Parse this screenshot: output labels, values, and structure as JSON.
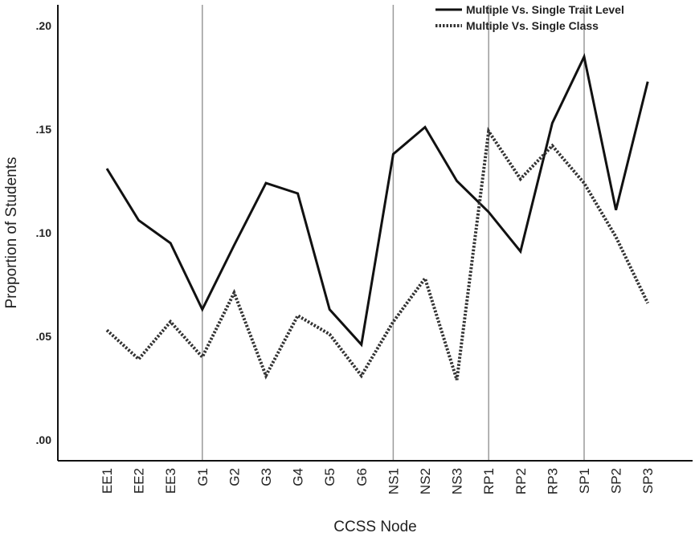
{
  "chart_data": {
    "type": "line",
    "xlabel": "CCSS Node",
    "ylabel": "Proportion of Students",
    "categories": [
      "EE1",
      "EE2",
      "EE3",
      "G1",
      "G2",
      "G3",
      "G4",
      "G5",
      "G6",
      "NS1",
      "NS2",
      "NS3",
      "RP1",
      "RP2",
      "RP3",
      "SP1",
      "SP2",
      "SP3"
    ],
    "ylim": [
      0.0,
      0.21
    ],
    "yticks": [
      0.0,
      0.05,
      0.1,
      0.15,
      0.2
    ],
    "ytick_labels": [
      ".00",
      ".05",
      ".10",
      ".15",
      ".20"
    ],
    "reference_lines_after": [
      "G1",
      "NS1",
      "RP1",
      "SP1"
    ],
    "legend_position": "top-right",
    "series": [
      {
        "name": "Multiple Vs. Single Trait Level",
        "style": "solid",
        "color": "#111111",
        "values": [
          0.131,
          0.106,
          0.095,
          0.063,
          0.094,
          0.124,
          0.119,
          0.063,
          0.046,
          0.138,
          0.151,
          0.125,
          0.11,
          0.091,
          0.153,
          0.185,
          0.111,
          0.173
        ]
      },
      {
        "name": "Multiple Vs. Single Class",
        "style": "dotted",
        "color": "#333333",
        "values": [
          0.053,
          0.039,
          0.057,
          0.04,
          0.071,
          0.031,
          0.06,
          0.051,
          0.031,
          0.057,
          0.078,
          0.029,
          0.149,
          0.126,
          0.142,
          0.124,
          0.098,
          0.066
        ]
      }
    ]
  }
}
